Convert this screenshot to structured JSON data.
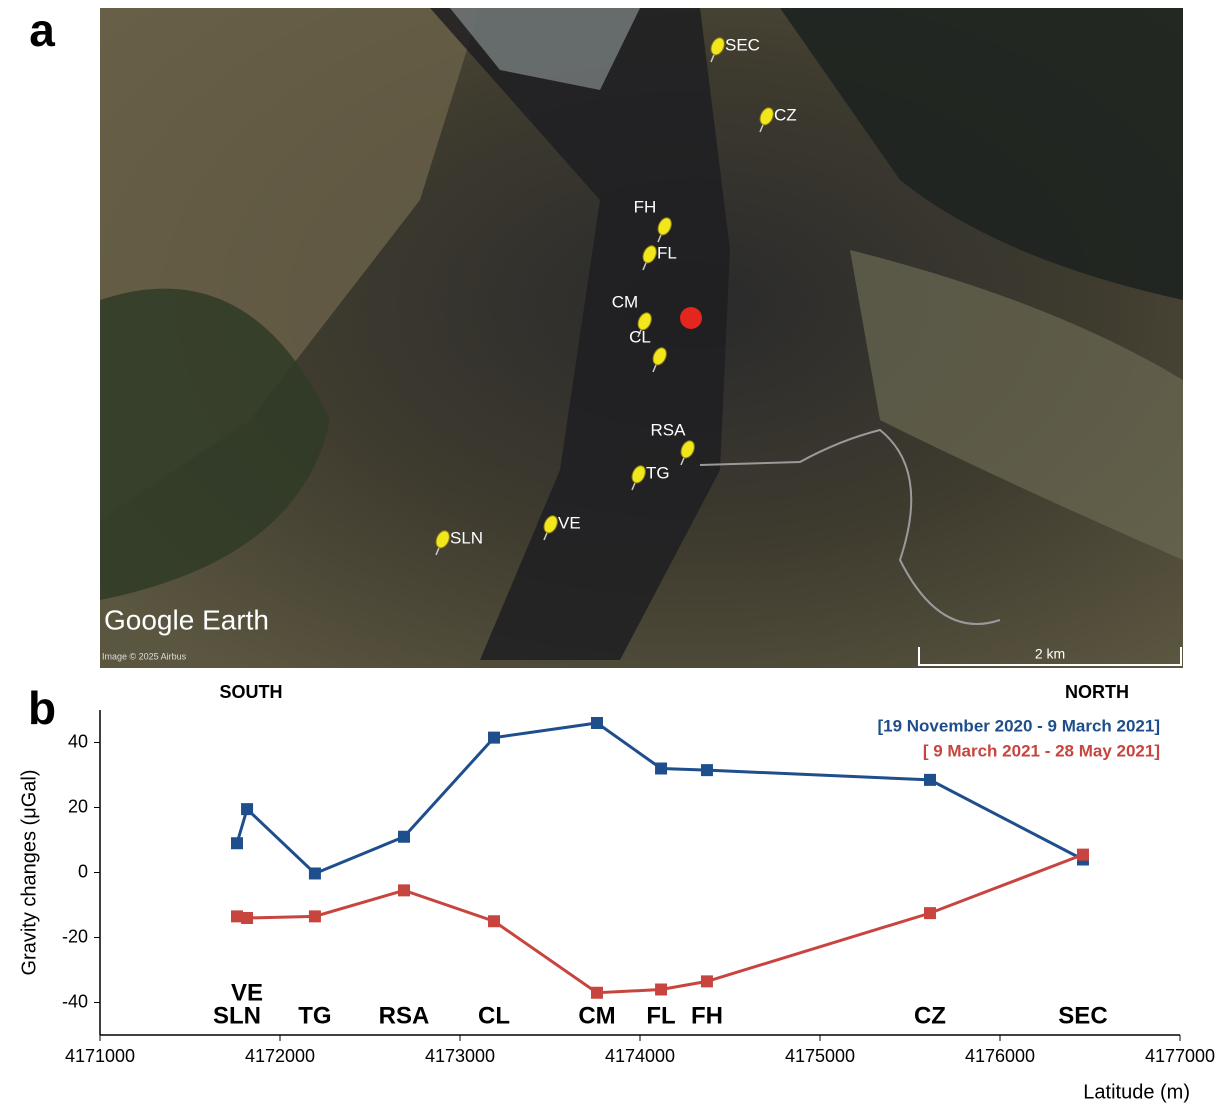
{
  "panels": [
    "a",
    "b"
  ],
  "map": {
    "credit": "Google Earth",
    "imagery": "Image © 2025 Airbus",
    "scale": "2 km",
    "markers": [
      {
        "label": "SEC"
      },
      {
        "label": "CZ"
      },
      {
        "label": "FH"
      },
      {
        "label": "FL"
      },
      {
        "label": "CM"
      },
      {
        "label": "CL"
      },
      {
        "label": "RSA"
      },
      {
        "label": "TG"
      },
      {
        "label": "VE"
      },
      {
        "label": "SLN"
      }
    ]
  },
  "chart_data": {
    "type": "line",
    "annotations": [
      "SOUTH",
      "NORTH"
    ],
    "y_label": "Gravity changes (μGal)",
    "x_label": "Latitude (m)",
    "categories": [
      "SLN",
      "VE",
      "TG",
      "RSA",
      "CL",
      "CM",
      "FL",
      "FH",
      "CZ",
      "SEC"
    ],
    "x": [
      4171761,
      4171817,
      4172194,
      4172689,
      4173189,
      4173761,
      4174117,
      4174372,
      4175611,
      4176461
    ],
    "series": [
      {
        "name": "[19 November 2020 - 9 March 2021]",
        "color": "#1f4e8c",
        "values": [
          9,
          19.5,
          -0.3,
          11,
          41.5,
          46,
          32,
          31.5,
          28.5,
          4
        ]
      },
      {
        "name": "[ 9 March 2021 - 28 May 2021]",
        "color": "#c8453f",
        "values": [
          -13.5,
          -14,
          -13.5,
          -5.5,
          -15,
          -37,
          -36,
          -33.5,
          -12.5,
          5.5
        ]
      }
    ],
    "xlim": [
      4171000,
      4177000
    ],
    "xticks": [
      4171000,
      4172000,
      4173000,
      4174000,
      4175000,
      4176000,
      4177000
    ],
    "ylim": [
      -50,
      50
    ],
    "yticks": [
      -40,
      -20,
      0,
      20,
      40
    ],
    "grid": false,
    "legend": "top-right"
  }
}
